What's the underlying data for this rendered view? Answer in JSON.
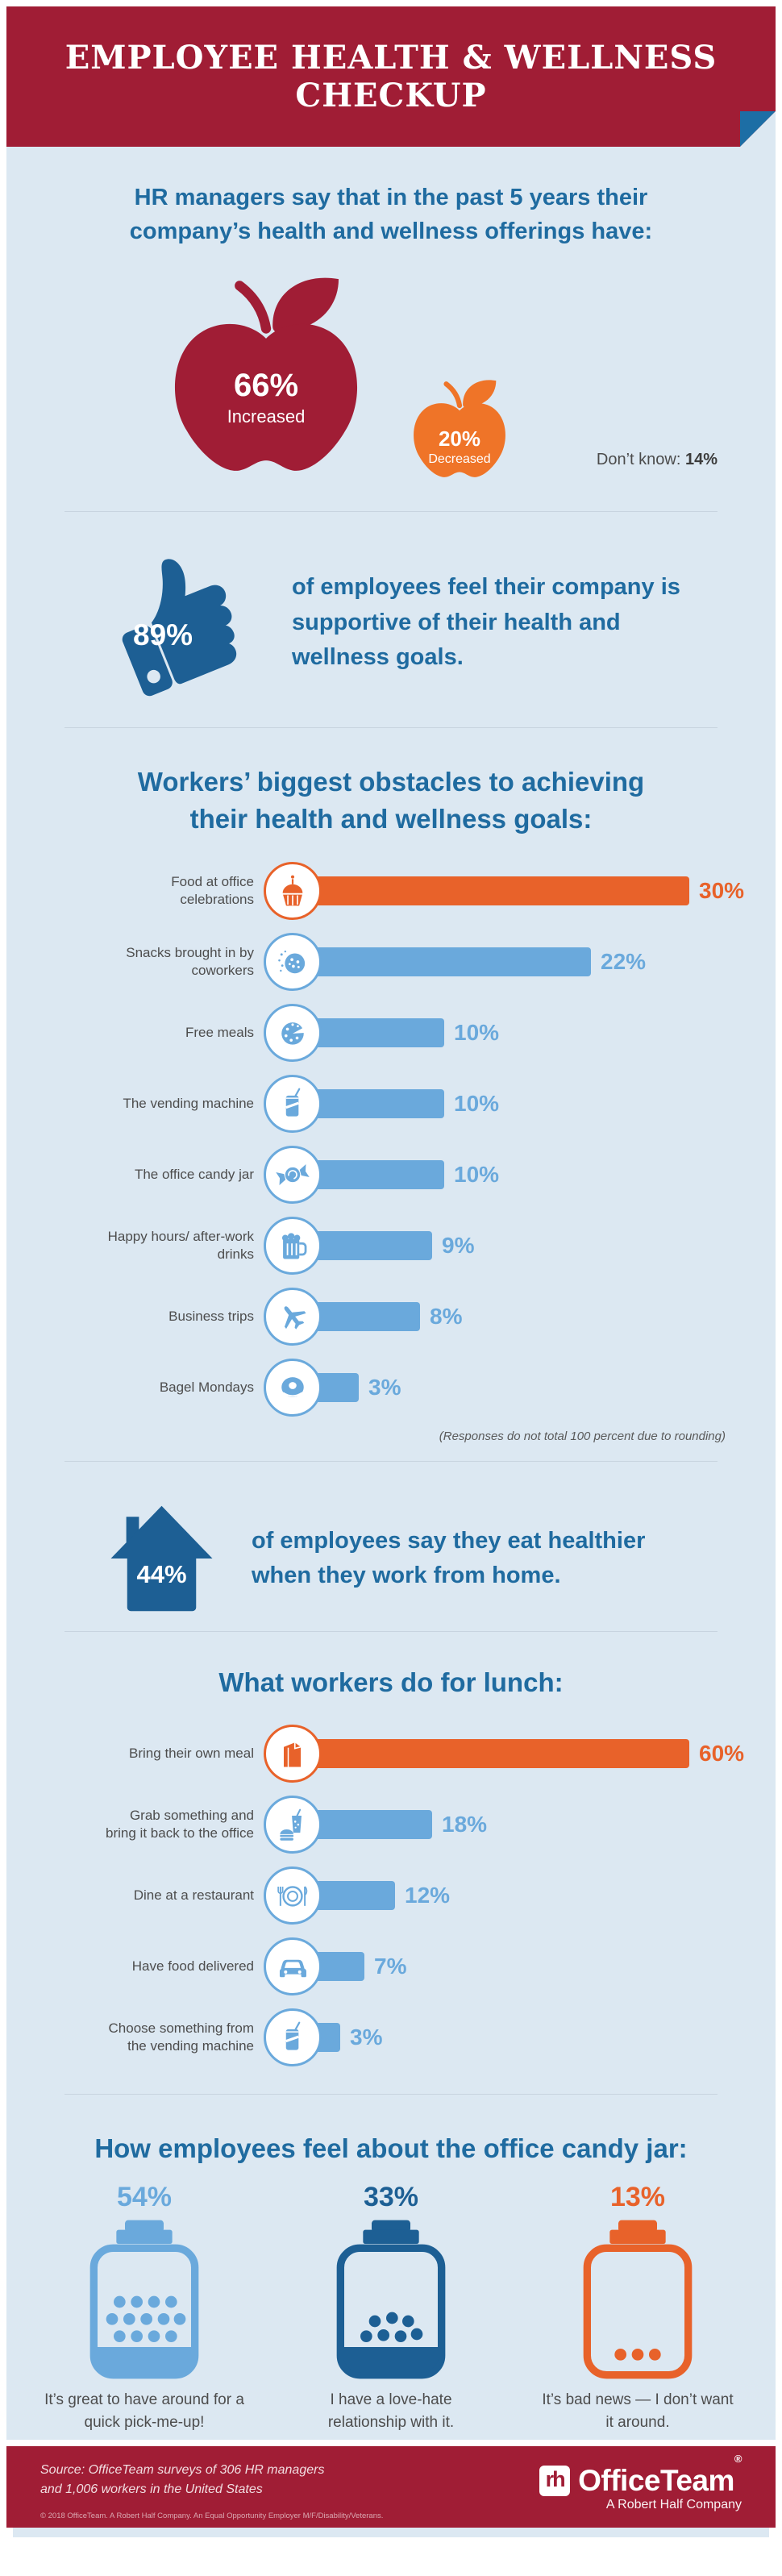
{
  "header": {
    "title": "EMPLOYEE HEALTH & WELLNESS CHECKUP"
  },
  "intro": {
    "text": "HR managers say that in the past 5 years their company’s health and wellness offerings have:"
  },
  "offerings": {
    "increased": {
      "value": "66%",
      "label": "Increased"
    },
    "decreased": {
      "value": "20%",
      "label": "Decreased"
    },
    "dont_know_label": "Don’t know: ",
    "dont_know_value": "14%"
  },
  "supportive": {
    "value": "89%",
    "text": "of employees feel their company is supportive of their health and wellness goals."
  },
  "obstacles": {
    "title": "Workers’ biggest obstacles to achieving their health and wellness goals:",
    "note": "(Responses do not total 100 percent due to rounding)",
    "max_value": 30,
    "items": [
      {
        "label": "Food at office celebrations",
        "icon": "cupcake-icon",
        "value": 30,
        "display": "30%",
        "highlight": true
      },
      {
        "label": "Snacks brought in by coworkers",
        "icon": "cookie-icon",
        "value": 22,
        "display": "22%",
        "highlight": false
      },
      {
        "label": "Free meals",
        "icon": "pizza-icon",
        "value": 10,
        "display": "10%",
        "highlight": false
      },
      {
        "label": "The vending machine",
        "icon": "soda-can-icon",
        "value": 10,
        "display": "10%",
        "highlight": false
      },
      {
        "label": "The office candy jar",
        "icon": "candy-icon",
        "value": 10,
        "display": "10%",
        "highlight": false
      },
      {
        "label": "Happy hours/ after-work drinks",
        "icon": "beer-mug-icon",
        "value": 9,
        "display": "9%",
        "highlight": false
      },
      {
        "label": "Business trips",
        "icon": "airplane-icon",
        "value": 8,
        "display": "8%",
        "highlight": false
      },
      {
        "label": "Bagel Mondays",
        "icon": "bagel-icon",
        "value": 3,
        "display": "3%",
        "highlight": false
      }
    ]
  },
  "work_from_home": {
    "value": "44%",
    "text": "of employees say they eat healthier when they work from home."
  },
  "lunch": {
    "title": "What workers do for lunch:",
    "max_value": 60,
    "items": [
      {
        "label": "Bring their own meal",
        "icon": "lunch-bag-icon",
        "value": 60,
        "display": "60%",
        "highlight": true
      },
      {
        "label": "Grab something and bring it back to the office",
        "icon": "takeout-icon",
        "value": 18,
        "display": "18%",
        "highlight": false
      },
      {
        "label": "Dine at a restaurant",
        "icon": "plate-icon",
        "value": 12,
        "display": "12%",
        "highlight": false
      },
      {
        "label": "Have food delivered",
        "icon": "car-icon",
        "value": 7,
        "display": "7%",
        "highlight": false
      },
      {
        "label": "Choose something from the vending machine",
        "icon": "soda-can-icon",
        "value": 3,
        "display": "3%",
        "highlight": false
      }
    ]
  },
  "candy_jar": {
    "title": "How employees feel about the office candy jar:",
    "items": [
      {
        "value": "54%",
        "caption": "It’s great to have around for a quick pick-me-up!",
        "tone": "light-blue"
      },
      {
        "value": "33%",
        "caption": "I have a love-hate relationship with it.",
        "tone": "dark-blue"
      },
      {
        "value": "13%",
        "caption": "It’s bad news — I don’t want it around.",
        "tone": "orange"
      }
    ]
  },
  "footer": {
    "source_line1": "Source: OfficeTeam surveys of 306 HR managers",
    "source_line2": "and 1,006 workers in the United States",
    "copyright": "© 2018 OfficeTeam. A Robert Half Company. An Equal Opportunity Employer M/F/Disability/Veterans.",
    "logo": {
      "mark": "rh",
      "name": "OfficeTeam",
      "registered": "®",
      "tagline": "A Robert Half Company"
    }
  },
  "colors": {
    "red": "#a01d35",
    "orange": "#e8622a",
    "orange_apple": "#ef7428",
    "dark_blue": "#1d5f94",
    "title_blue": "#1f6ba0",
    "bar_blue": "#6aa9dc",
    "background": "#dce8f2"
  },
  "chart_data": [
    {
      "type": "pie",
      "title": "HR managers say that in the past 5 years their company’s health and wellness offerings have:",
      "categories": [
        "Increased",
        "Decreased",
        "Don’t know"
      ],
      "values": [
        66,
        20,
        14
      ],
      "unit": "%",
      "notes": "rendered as large red apple (66%) and small orange apple (20%)"
    },
    {
      "type": "bar",
      "orientation": "horizontal",
      "title": "Workers’ biggest obstacles to achieving their health and wellness goals:",
      "categories": [
        "Food at office celebrations",
        "Snacks brought in by coworkers",
        "Free meals",
        "The vending machine",
        "The office candy jar",
        "Happy hours/ after-work drinks",
        "Business trips",
        "Bagel Mondays"
      ],
      "values": [
        30,
        22,
        10,
        10,
        10,
        9,
        8,
        3
      ],
      "unit": "%",
      "xlim": [
        0,
        30
      ],
      "note": "(Responses do not total 100 percent due to rounding)",
      "highlight_first_bar": true
    },
    {
      "type": "stat",
      "value": 89,
      "unit": "%",
      "text": "of employees feel their company is supportive of their health and wellness goals."
    },
    {
      "type": "stat",
      "value": 44,
      "unit": "%",
      "text": "of employees say they eat healthier when they work from home."
    },
    {
      "type": "bar",
      "orientation": "horizontal",
      "title": "What workers do for lunch:",
      "categories": [
        "Bring their own meal",
        "Grab something and bring it back to the office",
        "Dine at a restaurant",
        "Have food delivered",
        "Choose something from the vending machine"
      ],
      "values": [
        60,
        18,
        12,
        7,
        3
      ],
      "unit": "%",
      "xlim": [
        0,
        60
      ],
      "highlight_first_bar": true
    },
    {
      "type": "pie",
      "title": "How employees feel about the office candy jar:",
      "categories": [
        "It’s great to have around for a quick pick-me-up!",
        "I have a love-hate relationship with it.",
        "It’s bad news — I don’t want it around."
      ],
      "values": [
        54,
        33,
        13
      ],
      "unit": "%",
      "notes": "rendered as three candy jars with decreasing fill"
    }
  ]
}
